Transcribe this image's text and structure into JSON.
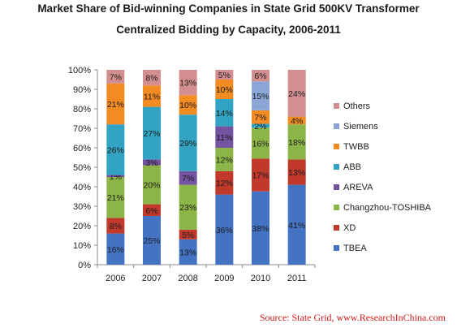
{
  "chart_data": {
    "type": "bar",
    "stacked": true,
    "normalized": true,
    "title_lines": [
      "Market Share of Bid-winning Companies in State Grid 500KV Transformer",
      "Centralized Bidding by Capacity, 2006-2011"
    ],
    "categories": [
      "2006",
      "2007",
      "2008",
      "2009",
      "2010",
      "2011"
    ],
    "y_ticks": [
      "0%",
      "10%",
      "20%",
      "30%",
      "40%",
      "50%",
      "60%",
      "70%",
      "80%",
      "90%",
      "100%"
    ],
    "ylim": [
      0,
      100
    ],
    "grid": false,
    "legend_position": "right",
    "series": [
      {
        "name": "TBEA",
        "color": "#4473c4",
        "values": [
          16,
          25,
          13,
          36,
          38,
          41
        ],
        "labels": [
          "16%",
          "25%",
          "13%",
          "36%",
          "38%",
          "41%"
        ]
      },
      {
        "name": "XD",
        "color": "#c0392b",
        "values": [
          8,
          6,
          5,
          12,
          17,
          13
        ],
        "labels": [
          "8%",
          "6%",
          "5%",
          "12%",
          "17%",
          "13%"
        ]
      },
      {
        "name": "Changzhou-TOSHIBA",
        "color": "#8cb548",
        "values": [
          21,
          20,
          23,
          12,
          16,
          18
        ],
        "labels": [
          "21%",
          "20%",
          "23%",
          "12%",
          "16%",
          "18%"
        ]
      },
      {
        "name": "AREVA",
        "color": "#7453a0",
        "values": [
          1,
          3,
          7,
          11,
          0,
          0
        ],
        "labels": [
          "1%",
          "3%",
          "7%",
          "11%",
          "",
          ""
        ]
      },
      {
        "name": "ABB",
        "color": "#33a3c3",
        "values": [
          26,
          27,
          29,
          14,
          2,
          0
        ],
        "labels": [
          "26%",
          "27%",
          "29%",
          "14%",
          "2%",
          ""
        ]
      },
      {
        "name": "TWBB",
        "color": "#f28b22",
        "values": [
          21,
          11,
          10,
          10,
          7,
          4
        ],
        "labels": [
          "21%",
          "11%",
          "10%",
          "10%",
          "7%",
          "4%"
        ]
      },
      {
        "name": "Siemens",
        "color": "#8aa5d6",
        "values": [
          0,
          0,
          0,
          0,
          15,
          0
        ],
        "labels": [
          "",
          "",
          "",
          "",
          "15%",
          ""
        ]
      },
      {
        "name": "Others",
        "color": "#d38f8f",
        "values": [
          7,
          8,
          13,
          5,
          6,
          24
        ],
        "labels": [
          "7%",
          "8%",
          "13%",
          "5%",
          "6%",
          "24%"
        ]
      }
    ]
  },
  "source": "Source: State Grid, www.ResearchInChina.com"
}
